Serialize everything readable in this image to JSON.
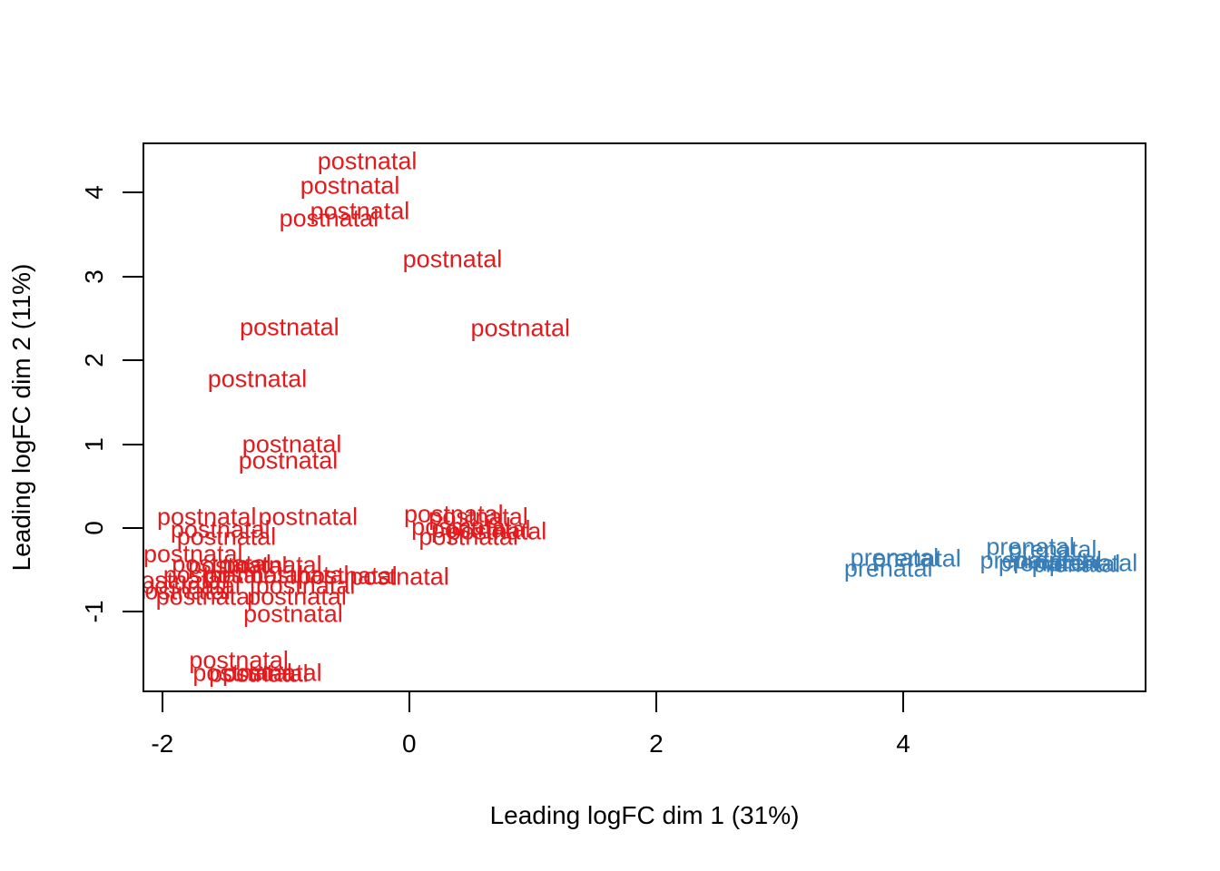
{
  "figure": {
    "background_color": "#ffffff",
    "axis_color": "#000000"
  },
  "chart_data": {
    "type": "scatter",
    "plot_style": "MDS plot, samples drawn as colored text labels (R plotMDS style)",
    "title": "",
    "xlabel": "Leading logFC dim 1 (31%)",
    "ylabel": "Leading logFC dim 2 (11%)",
    "xlim": [
      -2.16,
      5.97
    ],
    "ylim": [
      -1.96,
      4.6
    ],
    "x_ticks": [
      -2,
      0,
      2,
      4
    ],
    "y_ticks": [
      -1,
      0,
      1,
      2,
      3,
      4
    ],
    "grid": false,
    "legend_position": "none",
    "series": [
      {
        "name": "postnatal",
        "label": "postnatal",
        "color": "#e41a1c",
        "points": [
          [
            -0.34,
            4.37
          ],
          [
            -0.48,
            4.08
          ],
          [
            -0.4,
            3.78
          ],
          [
            -0.65,
            3.69
          ],
          [
            0.35,
            3.2
          ],
          [
            -0.97,
            2.39
          ],
          [
            0.9,
            2.38
          ],
          [
            -1.23,
            1.78
          ],
          [
            -0.95,
            0.99
          ],
          [
            -0.98,
            0.8
          ],
          [
            -1.64,
            0.13
          ],
          [
            -0.82,
            0.13
          ],
          [
            0.36,
            0.16
          ],
          [
            0.56,
            0.13
          ],
          [
            -1.53,
            -0.02
          ],
          [
            0.42,
            0.01
          ],
          [
            0.58,
            -0.02
          ],
          [
            0.71,
            -0.04
          ],
          [
            -1.48,
            -0.11
          ],
          [
            0.48,
            -0.11
          ],
          [
            -1.75,
            -0.31
          ],
          [
            -1.52,
            -0.43
          ],
          [
            -1.39,
            -0.45
          ],
          [
            -1.11,
            -0.44
          ],
          [
            -1.59,
            -0.56
          ],
          [
            -1.26,
            -0.56
          ],
          [
            -0.89,
            -0.56
          ],
          [
            -0.5,
            -0.57
          ],
          [
            -0.08,
            -0.58
          ],
          [
            -1.88,
            -0.63
          ],
          [
            -1.77,
            -0.69
          ],
          [
            -0.84,
            -0.69
          ],
          [
            -1.85,
            -0.76
          ],
          [
            -1.65,
            -0.82
          ],
          [
            -0.91,
            -0.82
          ],
          [
            -0.94,
            -1.03
          ],
          [
            -1.38,
            -1.58
          ],
          [
            -1.35,
            -1.73
          ],
          [
            -1.22,
            -1.74
          ],
          [
            -1.11,
            -1.73
          ]
        ]
      },
      {
        "name": "prenatal",
        "label": "prenatal",
        "color": "#377eb8",
        "points": [
          [
            3.93,
            -0.36
          ],
          [
            4.11,
            -0.37
          ],
          [
            3.88,
            -0.49
          ],
          [
            5.03,
            -0.23
          ],
          [
            5.21,
            -0.26
          ],
          [
            4.98,
            -0.39
          ],
          [
            5.13,
            -0.42
          ],
          [
            5.25,
            -0.39
          ],
          [
            5.4,
            -0.43
          ],
          [
            5.54,
            -0.42
          ]
        ]
      }
    ]
  }
}
